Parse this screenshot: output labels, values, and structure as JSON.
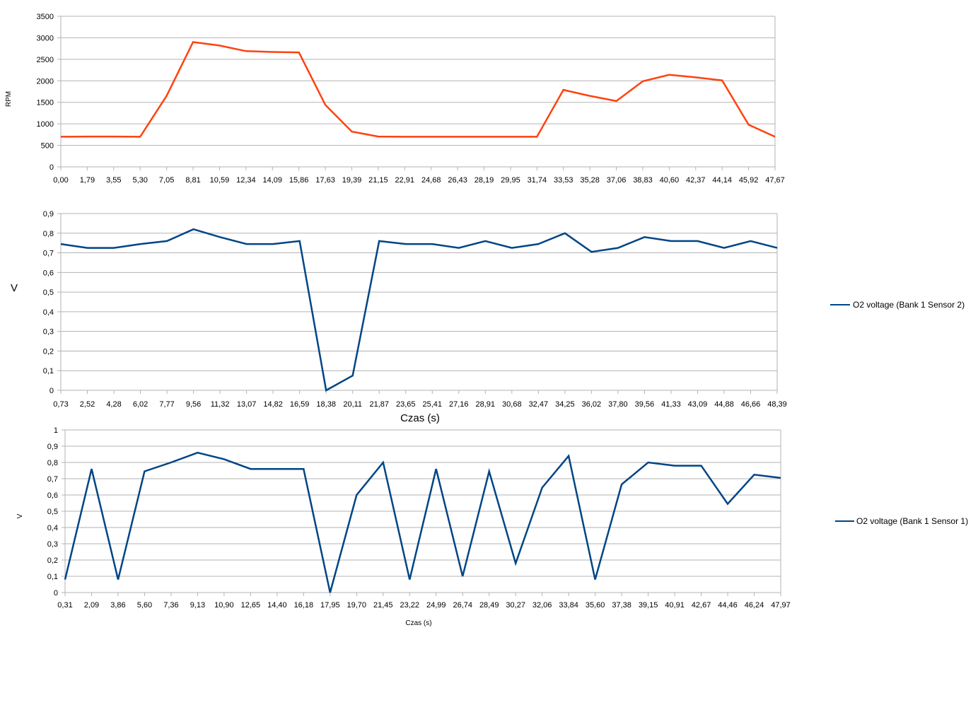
{
  "colors": {
    "rpm_line": "#ff420e",
    "o2_line": "#004586",
    "grid": "#b3b3b3"
  },
  "chart_data": [
    {
      "type": "line",
      "title": "",
      "xlabel": "",
      "ylabel": "RPM",
      "ylim": [
        0,
        3500
      ],
      "yticks": [
        "0",
        "500",
        "1000",
        "1500",
        "2000",
        "2500",
        "3000",
        "3500"
      ],
      "categories": [
        "0,00",
        "1,79",
        "3,55",
        "5,30",
        "7,05",
        "8,81",
        "10,59",
        "12,34",
        "14,09",
        "15,86",
        "17,63",
        "19,39",
        "21,15",
        "22,91",
        "24,68",
        "26,43",
        "28,19",
        "29,95",
        "31,74",
        "33,53",
        "35,28",
        "37,06",
        "38,83",
        "40,60",
        "42,37",
        "44,14",
        "45,92",
        "47,67"
      ],
      "grid": true,
      "legend": "none",
      "series": [
        {
          "values": [
            700,
            705,
            705,
            700,
            1650,
            2900,
            2820,
            2690,
            2670,
            2660,
            1440,
            820,
            705,
            700,
            700,
            700,
            700,
            700,
            700,
            1790,
            1650,
            1530,
            1990,
            2140,
            2080,
            2010,
            980,
            700
          ]
        }
      ]
    },
    {
      "type": "line",
      "title": "",
      "xlabel": "Czas (s)",
      "ylabel": "V",
      "ylim": [
        0,
        0.9
      ],
      "yticks": [
        "0",
        "0,1",
        "0,2",
        "0,3",
        "0,4",
        "0,5",
        "0,6",
        "0,7",
        "0,8",
        "0,9"
      ],
      "categories": [
        "0,73",
        "2,52",
        "4,28",
        "6,02",
        "7,77",
        "9,56",
        "11,32",
        "13,07",
        "14,82",
        "16,59",
        "18,38",
        "20,11",
        "21,87",
        "23,65",
        "25,41",
        "27,16",
        "28,91",
        "30,68",
        "32,47",
        "34,25",
        "36,02",
        "37,80",
        "39,56",
        "41,33",
        "43,09",
        "44,88",
        "46,66",
        "48,39"
      ],
      "grid": true,
      "legend": "right",
      "series": [
        {
          "name": "O2 voltage (Bank 1  Sensor 2)",
          "values": [
            0.745,
            0.725,
            0.725,
            0.745,
            0.76,
            0.82,
            0.78,
            0.745,
            0.745,
            0.76,
            0.0,
            0.075,
            0.76,
            0.745,
            0.745,
            0.725,
            0.76,
            0.725,
            0.745,
            0.8,
            0.705,
            0.725,
            0.78,
            0.76,
            0.76,
            0.725,
            0.76,
            0.725
          ]
        }
      ]
    },
    {
      "type": "line",
      "title": "",
      "xlabel": "Czas (s)",
      "ylabel": "V",
      "ylim": [
        0,
        1
      ],
      "yticks": [
        "0",
        "0,1",
        "0,2",
        "0,3",
        "0,4",
        "0,5",
        "0,6",
        "0,7",
        "0,8",
        "0,9",
        "1"
      ],
      "categories": [
        "0,31",
        "2,09",
        "3,86",
        "5,60",
        "7,36",
        "9,13",
        "10,90",
        "12,65",
        "14,40",
        "16,18",
        "17,95",
        "19,70",
        "21,45",
        "23,22",
        "24,99",
        "26,74",
        "28,49",
        "30,27",
        "32,06",
        "33,84",
        "35,60",
        "37,38",
        "39,15",
        "40,91",
        "42,67",
        "44,46",
        "46,24",
        "47,97"
      ],
      "grid": true,
      "legend": "right",
      "series": [
        {
          "name": "O2 voltage (Bank 1  Sensor 1)",
          "values": [
            0.08,
            0.76,
            0.08,
            0.745,
            0.8,
            0.86,
            0.82,
            0.76,
            0.76,
            0.76,
            0.0,
            0.6,
            0.8,
            0.08,
            0.76,
            0.1,
            0.745,
            0.18,
            0.645,
            0.84,
            0.08,
            0.665,
            0.8,
            0.78,
            0.78,
            0.545,
            0.725,
            0.705
          ]
        }
      ]
    }
  ]
}
